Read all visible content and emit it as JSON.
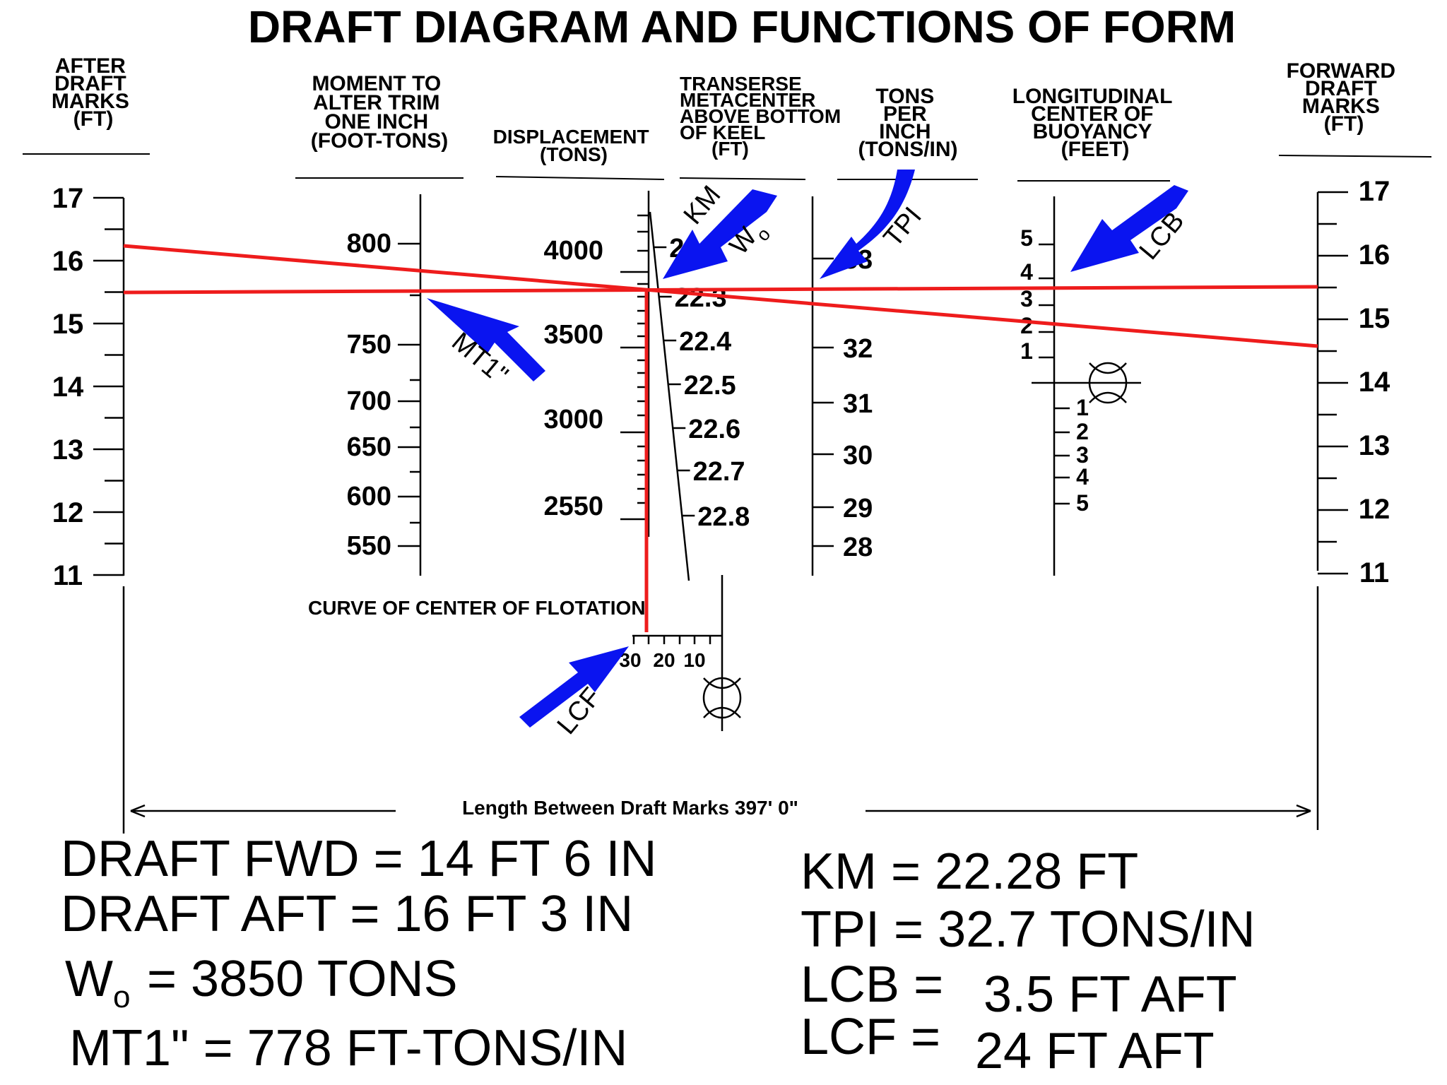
{
  "title": "DRAFT DIAGRAM AND FUNCTIONS OF FORM",
  "colors": {
    "readline": "#ee1c1c",
    "arrow": "#0a14f0",
    "ink": "#000000"
  },
  "scales": {
    "aft_draft": {
      "header": [
        "AFTER",
        "DRAFT",
        "MARKS",
        "(FT)"
      ],
      "labels": [
        "17",
        "16",
        "15",
        "14",
        "13",
        "12",
        "11"
      ]
    },
    "mt1": {
      "header": [
        "MOMENT TO",
        "ALTER TRIM",
        "ONE INCH",
        "(FOOT-TONS)"
      ],
      "labels": [
        "800",
        "750",
        "700",
        "650",
        "600",
        "550"
      ]
    },
    "displacement": {
      "header": [
        "DISPLACEMENT",
        "(TONS)"
      ],
      "labels": [
        "4000",
        "3500",
        "3000",
        "2550"
      ]
    },
    "km": {
      "header": [
        "TRANSERSE",
        "METACENTER",
        "ABOVE BOTTOM",
        "OF KEEL",
        "(FT)"
      ],
      "labels": [
        "22.2",
        "22.3",
        "22.4",
        "22.5",
        "22.6",
        "22.7",
        "22.8"
      ]
    },
    "tpi": {
      "header": [
        "TONS",
        "PER",
        "INCH",
        "(TONS/IN)"
      ],
      "labels": [
        "33",
        "32",
        "31",
        "30",
        "29",
        "28"
      ]
    },
    "lcb": {
      "header": [
        "LONGITUDINAL",
        "CENTER OF",
        "BUOYANCY",
        "(FEET)"
      ],
      "labels_fwd": [
        "5",
        "4",
        "3",
        "2",
        "1"
      ],
      "labels_aft": [
        "1",
        "2",
        "3",
        "4",
        "5"
      ]
    },
    "fwd_draft": {
      "header": [
        "FORWARD",
        "DRAFT",
        "MARKS",
        "(FT)"
      ],
      "labels": [
        "17",
        "16",
        "15",
        "14",
        "13",
        "12",
        "11"
      ]
    }
  },
  "lcf_curve": {
    "caption": "CURVE OF CENTER OF FLOTATION",
    "labels": [
      "30",
      "20",
      "10"
    ]
  },
  "length_label": "Length Between Draft Marks 397' 0\"",
  "arrows": {
    "km": "KM",
    "wo": "W",
    "wo_sub": "o",
    "tpi": "TPI",
    "lcb": "LCB",
    "mt1": "MT1\"",
    "lcf": "LCF"
  },
  "results": {
    "draft_fwd": "DRAFT FWD = 14 FT 6 IN",
    "draft_aft": "DRAFT AFT = 16 FT 3 IN",
    "wo_prefix": "W",
    "wo_sub": "o",
    "wo_value": "= 3850 TONS",
    "mt1": "MT1\" = 778 FT-TONS/IN",
    "km": "KM =  22.28 FT",
    "tpi": "TPI =  32.7 TONS/IN",
    "lcb_label": "LCB =",
    "lcb_value": "3.5 FT AFT",
    "lcf_label": "LCF =",
    "lcf_value": "24 FT AFT"
  }
}
